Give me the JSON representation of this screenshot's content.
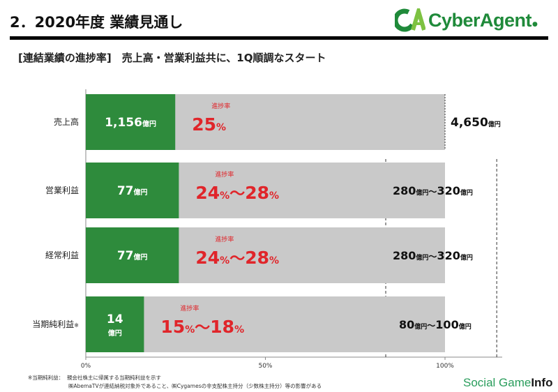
{
  "header": {
    "title": "2．2020年度 業績見通し",
    "subtitle": "[連結業績の進捗率]　売上高・営業利益共に、1Q順調なスタート",
    "logo_text": "CyberAgent",
    "logo_mark": "CA"
  },
  "colors": {
    "achieved": "#2e8b3c",
    "remaining": "#c9c9c9",
    "accent_red": "#e0252a",
    "logo_green": "#1f8a3a"
  },
  "chart_data": {
    "type": "bar",
    "orientation": "horizontal",
    "stacked": true,
    "x_ticks": [
      "0%",
      "50%",
      "100%"
    ],
    "xlim": [
      0,
      100
    ],
    "unit": "億円",
    "progress_label": "進捗率",
    "rows": [
      {
        "label": "売上高",
        "note": "",
        "achieved_value": "1,156",
        "achieved_pct": 24.9,
        "progress_text": [
          "25",
          "%",
          "",
          "",
          ""
        ],
        "target_min": "4,650",
        "target_max": "",
        "range_sep": "",
        "dashed_max_pct": null
      },
      {
        "label": "営業利益",
        "note": "",
        "achieved_value": "77",
        "achieved_pct": 25.9,
        "progress_text": [
          "24",
          "%",
          "～",
          "28",
          "%"
        ],
        "target_min": "280",
        "target_max": "320",
        "range_sep": "～",
        "dashed_max_pct": 114.4
      },
      {
        "label": "経常利益",
        "note": "",
        "achieved_value": "77",
        "achieved_pct": 25.9,
        "progress_text": [
          "24",
          "%",
          "～",
          "28",
          "%"
        ],
        "target_min": "280",
        "target_max": "320",
        "range_sep": "～",
        "dashed_max_pct": 114.4
      },
      {
        "label": "当期純利益",
        "note": "※",
        "achieved_value": "14",
        "achieved_pct": 16.2,
        "progress_text": [
          "15",
          "%",
          "～",
          "18",
          "%"
        ],
        "target_min": "80",
        "target_max": "100",
        "range_sep": "～",
        "dashed_max_pct": 114.4
      }
    ],
    "dashed_min_pct": 83.5
  },
  "footnotes": {
    "line1": "※当期純利益：  親会社株主に帰属する当期純利益を示す",
    "line2": "㈱AbemaTVが連結納税対象外であること、㈱Cygamesの非支配株主持分（少数株主持分）等の影響がある"
  },
  "source": {
    "part1": "Social Game",
    "part2": "Info"
  }
}
